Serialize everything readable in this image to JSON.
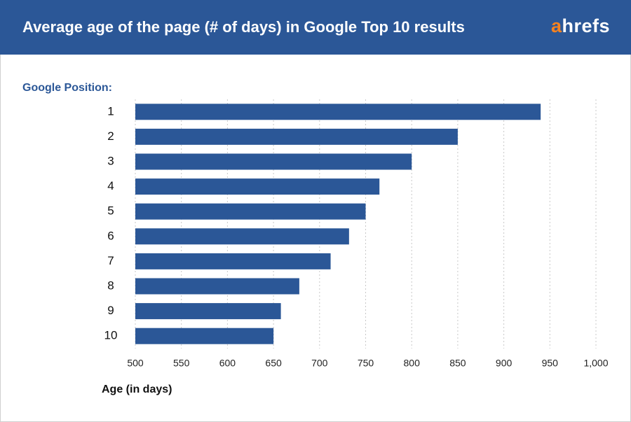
{
  "logo": "ahrefs",
  "chart_data": {
    "type": "bar",
    "orientation": "horizontal",
    "title": "Average age of the page (# of days) in Google Top 10 results",
    "y_label": "Google Position:",
    "x_label": "Age (in days)",
    "categories": [
      "1",
      "2",
      "3",
      "4",
      "5",
      "6",
      "7",
      "8",
      "9",
      "10"
    ],
    "values": [
      940,
      850,
      800,
      765,
      750,
      732,
      712,
      678,
      658,
      650
    ],
    "color": "#2b5797",
    "xlim": [
      500,
      1000
    ],
    "xticks": [
      500,
      550,
      600,
      650,
      700,
      750,
      800,
      850,
      900,
      950,
      {
        "value": 1000,
        "label": "1,000"
      }
    ],
    "grid": true
  }
}
